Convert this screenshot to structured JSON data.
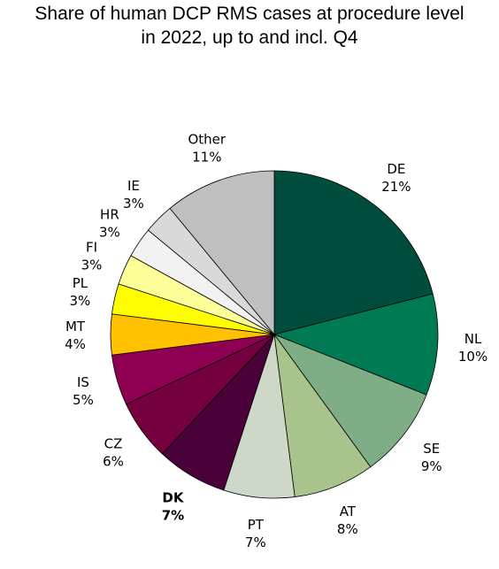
{
  "chart_data": {
    "type": "pie",
    "title_lines": [
      "Share of human  DCP RMS cases at procedure level",
      "in 2022, up to and incl. Q4"
    ],
    "slices": [
      {
        "label": "DE",
        "value": 21,
        "value_label": "21%",
        "color": "#004d3d"
      },
      {
        "label": "NL",
        "value": 10,
        "value_label": "10%",
        "color": "#007a52"
      },
      {
        "label": "SE",
        "value": 9,
        "value_label": "9%",
        "color": "#7fae86"
      },
      {
        "label": "AT",
        "value": 8,
        "value_label": "8%",
        "color": "#a8c48c"
      },
      {
        "label": "PT",
        "value": 7,
        "value_label": "7%",
        "color": "#cdd8c8"
      },
      {
        "label": "DK",
        "value": 7,
        "value_label": "7%",
        "color": "#4a0039",
        "bold": true
      },
      {
        "label": "CZ",
        "value": 6,
        "value_label": "6%",
        "color": "#75003f"
      },
      {
        "label": "IS",
        "value": 5,
        "value_label": "5%",
        "color": "#8f0052"
      },
      {
        "label": "MT",
        "value": 4,
        "value_label": "4%",
        "color": "#ffc000"
      },
      {
        "label": "PL",
        "value": 3,
        "value_label": "3%",
        "color": "#ffff00"
      },
      {
        "label": "FI",
        "value": 3,
        "value_label": "3%",
        "color": "#ffff99"
      },
      {
        "label": "HR",
        "value": 3,
        "value_label": "3%",
        "color": "#f2f2f2"
      },
      {
        "label": "IE",
        "value": 3,
        "value_label": "3%",
        "color": "#d9d9d9"
      },
      {
        "label": "Other",
        "value": 11,
        "value_label": "11%",
        "color": "#bfbfbf"
      }
    ],
    "legend": "none"
  }
}
